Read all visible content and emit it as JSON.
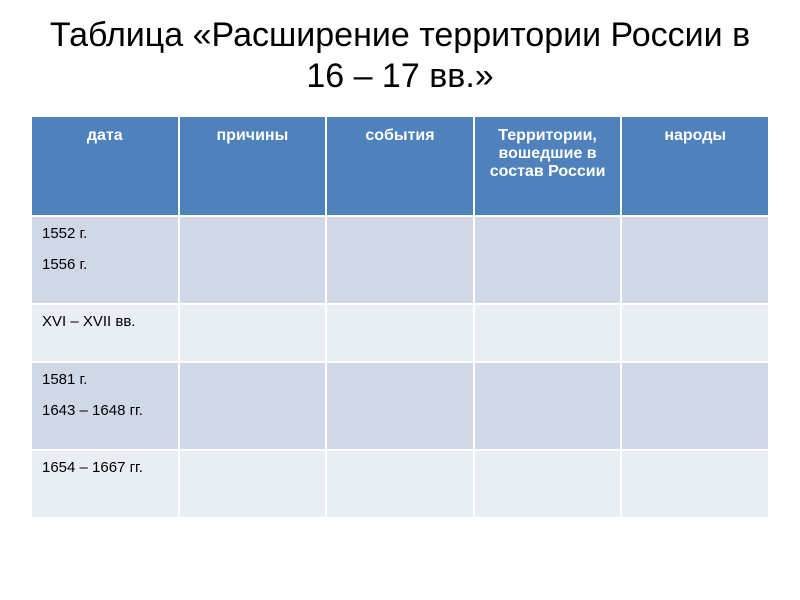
{
  "title": "Таблица «Расширение территории России в 16 – 17 вв.»",
  "table": {
    "columns": [
      "дата",
      "причины",
      "события",
      "Территории, вошедшие в состав России",
      "народы"
    ],
    "rows": [
      {
        "date_lines": [
          "1552 г.",
          "1556 г."
        ],
        "cells": [
          "",
          "",
          "",
          ""
        ],
        "stripe": "odd",
        "height": "row-tall"
      },
      {
        "date_lines": [
          "XVI – XVII вв."
        ],
        "cells": [
          "",
          "",
          "",
          ""
        ],
        "stripe": "even",
        "height": "row-short"
      },
      {
        "date_lines": [
          "1581 г.",
          "1643 – 1648 гг."
        ],
        "cells": [
          "",
          "",
          "",
          ""
        ],
        "stripe": "odd",
        "height": "row-tall"
      },
      {
        "date_lines": [
          "1654 – 1667 гг."
        ],
        "cells": [
          "",
          "",
          "",
          ""
        ],
        "stripe": "even",
        "height": "row-med"
      }
    ],
    "header_bg": "#4f81bd",
    "header_text_color": "#ffffff",
    "odd_bg": "#d0d8e8",
    "even_bg": "#e9edf4",
    "border_color": "#ffffff"
  }
}
